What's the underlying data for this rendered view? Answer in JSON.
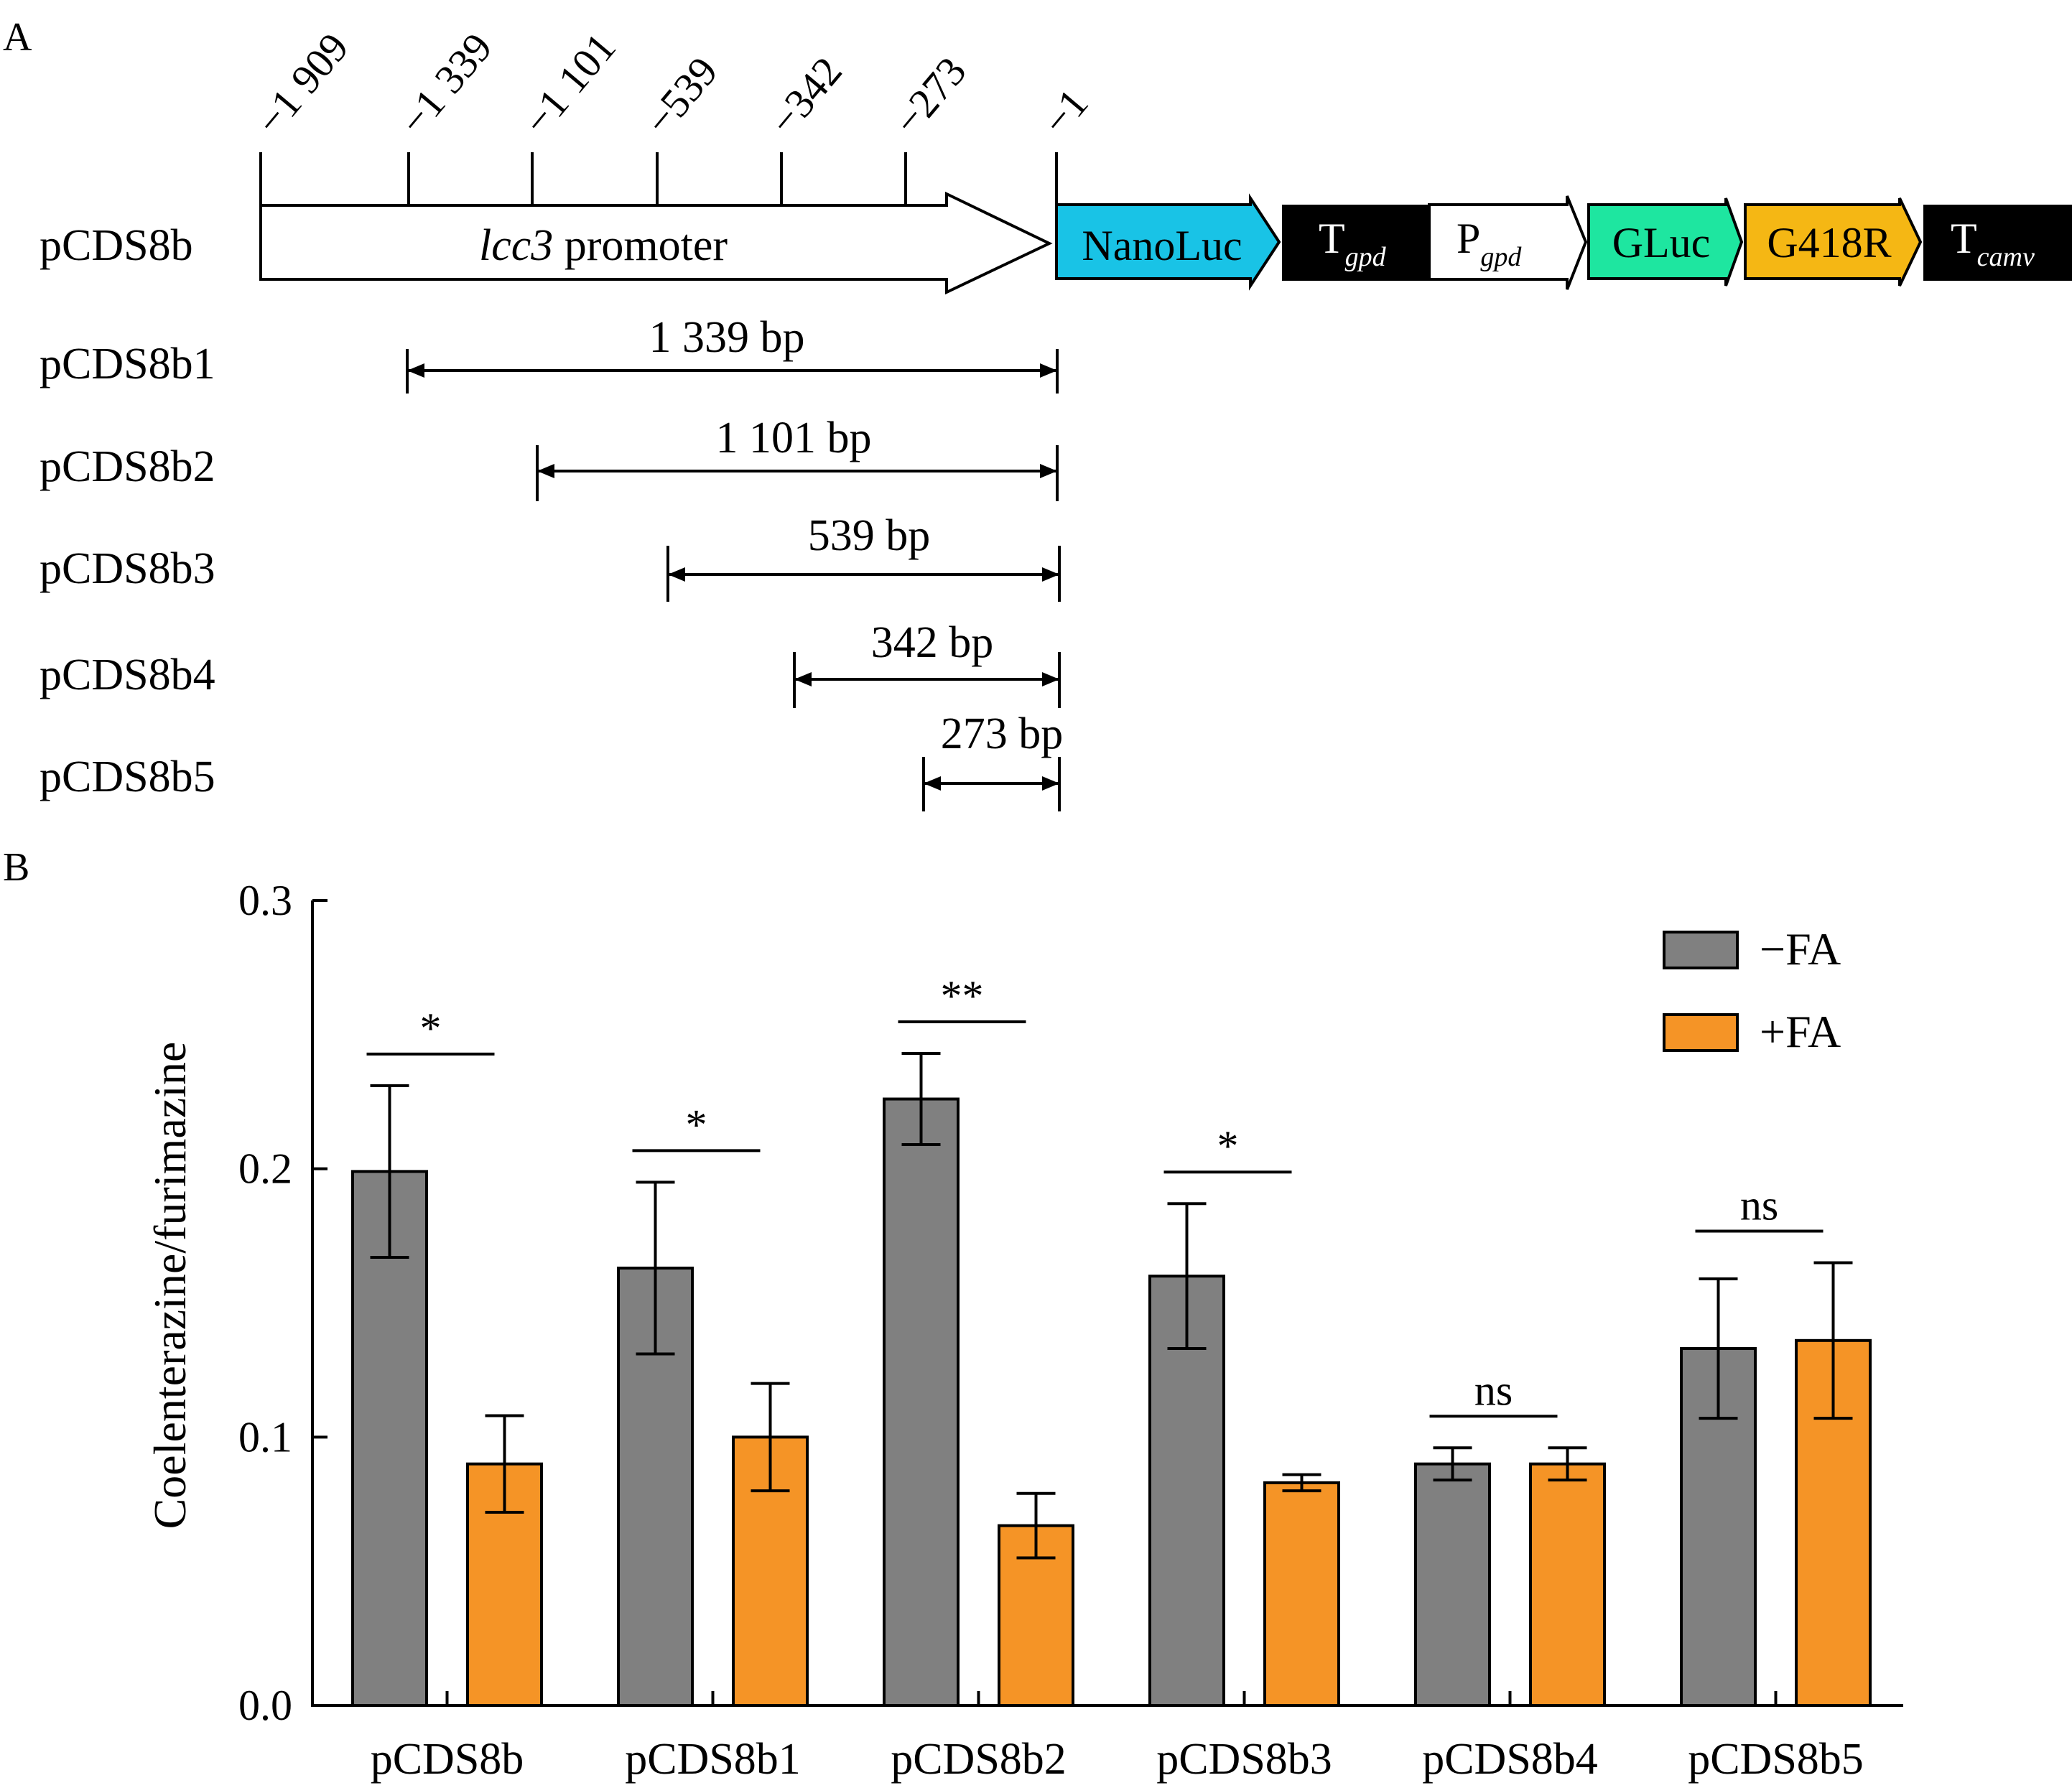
{
  "panel_a": {
    "label": "A",
    "positions": [
      "−1 909",
      "−1 339",
      "−1 101",
      "−539",
      "−342",
      "−273",
      "−1"
    ],
    "construct": {
      "name": "pCDS8b",
      "promoter_italic": "lcc3",
      "promoter_rest": " promoter",
      "elements": [
        {
          "label": "NanoLuc",
          "sub": "",
          "color": "#19c3e6",
          "kind": "arrow"
        },
        {
          "label": "T",
          "sub": "gpd",
          "color": "#000000",
          "kind": "box"
        },
        {
          "label": "P",
          "sub": "gpd",
          "color": "#ffffff",
          "kind": "arrow"
        },
        {
          "label": "GLuc",
          "sub": "",
          "color": "#1ee6a0",
          "kind": "arrow"
        },
        {
          "label": "G418R",
          "sub": "",
          "color": "#f5b714",
          "kind": "arrow"
        },
        {
          "label": "T",
          "sub": "camv",
          "color": "#000000",
          "kind": "box"
        }
      ]
    },
    "deletions": [
      {
        "name": "pCDS8b1",
        "length": "1 339 bp"
      },
      {
        "name": "pCDS8b2",
        "length": "1 101 bp"
      },
      {
        "name": "pCDS8b3",
        "length": "539 bp"
      },
      {
        "name": "pCDS8b4",
        "length": "342 bp"
      },
      {
        "name": "pCDS8b5",
        "length": "273 bp"
      }
    ]
  },
  "panel_b": {
    "label": "B"
  },
  "chart_data": {
    "type": "bar",
    "categories": [
      "pCDS8b",
      "pCDS8b1",
      "pCDS8b2",
      "pCDS8b3",
      "pCDS8b4",
      "pCDS8b5"
    ],
    "series": [
      {
        "name": "−FA",
        "color": "#808080",
        "values": [
          0.199,
          0.163,
          0.226,
          0.16,
          0.09,
          0.133
        ],
        "errors": [
          0.032,
          0.032,
          0.017,
          0.027,
          0.006,
          0.026
        ]
      },
      {
        "name": "+FA",
        "color": "#f59426",
        "values": [
          0.09,
          0.1,
          0.067,
          0.083,
          0.09,
          0.136
        ],
        "errors": [
          0.018,
          0.02,
          0.012,
          0.003,
          0.006,
          0.029
        ]
      }
    ],
    "significance": [
      "*",
      "*",
      "**",
      "*",
      "ns",
      "ns"
    ],
    "ylabel": "Coelenterazine/furimazine",
    "xlabel": "",
    "ylim": [
      0.0,
      0.3
    ],
    "yticks": [
      "0.0",
      "0.1",
      "0.2",
      "0.3"
    ],
    "legend_position": "top-right"
  }
}
